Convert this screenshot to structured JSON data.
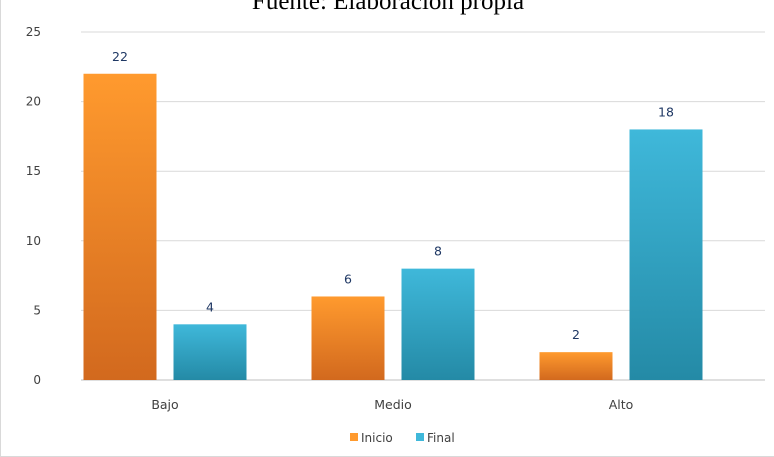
{
  "chart_data": {
    "type": "bar",
    "title": "Fuente: Elaboración propia",
    "categories": [
      "Bajo",
      "Medio",
      "Alto"
    ],
    "series": [
      {
        "name": "Inicio",
        "values": [
          22,
          6,
          2
        ],
        "color_top": "#ff9a2e",
        "color_bottom": "#d2691e"
      },
      {
        "name": "Final",
        "values": [
          4,
          8,
          18
        ],
        "color_top": "#3fb8da",
        "color_bottom": "#248aa6"
      }
    ],
    "yticks": [
      0,
      5,
      10,
      15,
      20,
      25
    ],
    "ylim": [
      0,
      25
    ],
    "grid": true,
    "legend_position": "bottom"
  }
}
